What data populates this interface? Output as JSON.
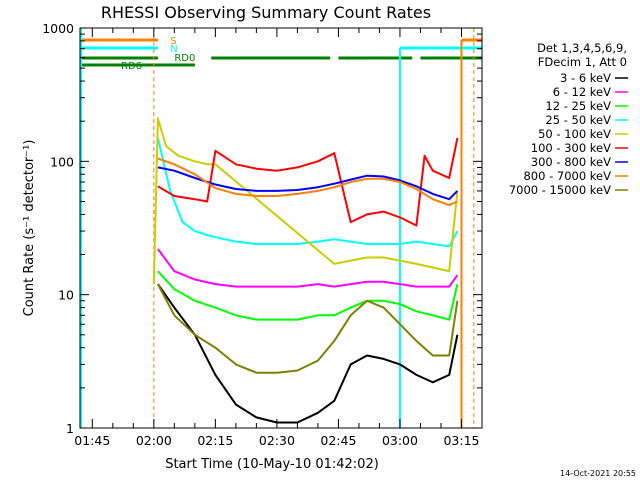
{
  "chart_data": {
    "type": "line",
    "title": "RHESSI Observing Summary Count Rates",
    "xlabel": "Start Time (10-May-10 01:42:02)",
    "ylabel": "Count Rate (s⁻¹ detector⁻¹)",
    "yscale": "log",
    "ylim": [
      1,
      1000
    ],
    "xlim": [
      "01:42",
      "03:20"
    ],
    "x_ticks": [
      "01:45",
      "02:00",
      "02:15",
      "02:30",
      "02:45",
      "03:00",
      "03:15"
    ],
    "y_ticks": [
      "1",
      "10",
      "100",
      "1000"
    ],
    "grid": false,
    "legend_position": "right",
    "legend_header": [
      "Det 1,3,4,5,6,9,",
      "FDecim 1, Att 0"
    ],
    "footer": "14-Oct-2021 20:55",
    "annotations": [
      "S",
      "N",
      "RD0",
      "RD6"
    ],
    "series": [
      {
        "name": "3 - 6 keV",
        "color": "#000000",
        "x": [
          "02:01",
          "02:05",
          "02:10",
          "02:15",
          "02:20",
          "02:25",
          "02:30",
          "02:35",
          "02:40",
          "02:44",
          "02:48",
          "02:52",
          "02:56",
          "03:00",
          "03:04",
          "03:08",
          "03:12",
          "03:14"
        ],
        "values": [
          12,
          8,
          5,
          2.5,
          1.5,
          1.2,
          1.1,
          1.1,
          1.3,
          1.6,
          3,
          3.5,
          3.3,
          3,
          2.5,
          2.2,
          2.5,
          5
        ]
      },
      {
        "name": "6 - 12 keV",
        "color": "#ff00ff",
        "x": [
          "02:01",
          "02:05",
          "02:10",
          "02:15",
          "02:20",
          "02:25",
          "02:30",
          "02:35",
          "02:40",
          "02:44",
          "02:48",
          "02:52",
          "02:56",
          "03:00",
          "03:04",
          "03:08",
          "03:12",
          "03:14"
        ],
        "values": [
          22,
          15,
          13,
          12,
          11.5,
          11.5,
          11.5,
          11.5,
          12,
          11.5,
          12,
          12.5,
          12.5,
          12,
          11.5,
          11.5,
          11.5,
          14
        ]
      },
      {
        "name": "12 - 25 keV",
        "color": "#00ff00",
        "x": [
          "02:01",
          "02:05",
          "02:10",
          "02:15",
          "02:20",
          "02:25",
          "02:30",
          "02:35",
          "02:40",
          "02:44",
          "02:48",
          "02:52",
          "02:56",
          "03:00",
          "03:04",
          "03:08",
          "03:12",
          "03:14"
        ],
        "values": [
          15,
          11,
          9,
          8,
          7,
          6.5,
          6.5,
          6.5,
          7,
          7,
          8,
          9,
          9,
          8.5,
          7.5,
          7,
          6.5,
          12
        ]
      },
      {
        "name": "25 - 50 keV",
        "color": "#00ffff",
        "x": [
          "02:01",
          "02:04",
          "02:07",
          "02:10",
          "02:13",
          "02:15",
          "02:20",
          "02:25",
          "02:30",
          "02:35",
          "02:40",
          "02:44",
          "02:48",
          "02:52",
          "02:56",
          "03:00",
          "03:04",
          "03:08",
          "03:12",
          "03:14"
        ],
        "values": [
          150,
          60,
          35,
          30,
          28,
          27,
          25,
          24,
          24,
          24,
          25,
          26,
          25,
          24,
          24,
          24,
          25,
          24,
          23,
          30
        ]
      },
      {
        "name": "50 - 100 keV",
        "color": "#cccc00",
        "x": [
          "02:00",
          "02:01",
          "02:03",
          "02:06",
          "02:10",
          "02:13",
          "02:15",
          "02:44",
          "02:48",
          "02:52",
          "02:56",
          "03:00",
          "03:04",
          "03:08",
          "03:12",
          "03:14"
        ],
        "values": [
          12,
          210,
          130,
          110,
          100,
          95,
          95,
          17,
          18,
          19,
          19,
          18,
          17,
          16,
          15,
          60
        ]
      },
      {
        "name": "100 - 300 keV",
        "color": "#ff0000",
        "x": [
          "02:01",
          "02:05",
          "02:10",
          "02:13",
          "02:15",
          "02:20",
          "02:25",
          "02:30",
          "02:35",
          "02:40",
          "02:44",
          "02:48",
          "02:52",
          "02:56",
          "03:00",
          "03:04",
          "03:06",
          "03:08",
          "03:12",
          "03:14"
        ],
        "values": [
          65,
          55,
          52,
          50,
          120,
          95,
          88,
          85,
          90,
          100,
          115,
          35,
          40,
          42,
          38,
          33,
          110,
          85,
          75,
          150
        ]
      },
      {
        "name": "300 - 800 keV",
        "color": "#0000ff",
        "x": [
          "02:01",
          "02:05",
          "02:10",
          "02:15",
          "02:20",
          "02:25",
          "02:30",
          "02:35",
          "02:40",
          "02:44",
          "02:48",
          "02:52",
          "02:56",
          "03:00",
          "03:04",
          "03:08",
          "03:12",
          "03:14"
        ],
        "values": [
          90,
          85,
          75,
          67,
          62,
          60,
          60,
          61,
          64,
          68,
          73,
          78,
          77,
          72,
          65,
          57,
          52,
          60
        ]
      },
      {
        "name": "800 - 7000 keV",
        "color": "#ff8000",
        "x": [
          "02:01",
          "02:05",
          "02:10",
          "02:15",
          "02:20",
          "02:25",
          "02:30",
          "02:35",
          "02:40",
          "02:44",
          "02:48",
          "02:52",
          "02:56",
          "03:00",
          "03:04",
          "03:08",
          "03:12",
          "03:14"
        ],
        "values": [
          105,
          95,
          80,
          63,
          57,
          55,
          55,
          57,
          60,
          64,
          70,
          74,
          74,
          70,
          62,
          52,
          47,
          50
        ]
      },
      {
        "name": "7000 - 15000 keV",
        "color": "#808000",
        "x": [
          "02:01",
          "02:05",
          "02:10",
          "02:15",
          "02:20",
          "02:25",
          "02:30",
          "02:35",
          "02:40",
          "02:44",
          "02:48",
          "02:52",
          "02:56",
          "03:00",
          "03:04",
          "03:08",
          "03:12",
          "03:14"
        ],
        "values": [
          12,
          7,
          5,
          4,
          3,
          2.6,
          2.6,
          2.7,
          3.2,
          4.5,
          7,
          9,
          8,
          6,
          4.5,
          3.5,
          3.5,
          9
        ]
      }
    ]
  }
}
